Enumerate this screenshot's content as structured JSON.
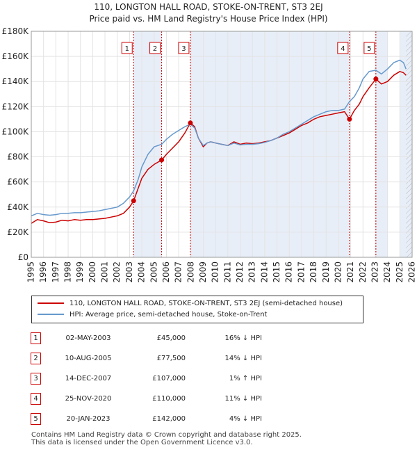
{
  "header": {
    "title_line1": "110, LONGTON HALL ROAD, STOKE-ON-TRENT, ST3 2EJ",
    "title_line2": "Price paid vs. HM Land Registry's House Price Index (HPI)"
  },
  "colors": {
    "property": "#cc0000",
    "hpi": "#6699cc",
    "shade": "#e8eef8",
    "vline": "#cc0000"
  },
  "chart_data": {
    "type": "line",
    "xlim": [
      1995,
      2026
    ],
    "ylim": [
      0,
      180000
    ],
    "x_ticks": [
      "1995",
      "1996",
      "1997",
      "1998",
      "1999",
      "2000",
      "2001",
      "2002",
      "2003",
      "2004",
      "2005",
      "2006",
      "2007",
      "2008",
      "2009",
      "2010",
      "2011",
      "2012",
      "2013",
      "2014",
      "2015",
      "2016",
      "2017",
      "2018",
      "2019",
      "2020",
      "2021",
      "2022",
      "2023",
      "2024",
      "2025",
      "2026"
    ],
    "y_ticks": [
      {
        "value": 0,
        "label": "£0"
      },
      {
        "value": 20000,
        "label": "£20K"
      },
      {
        "value": 40000,
        "label": "£40K"
      },
      {
        "value": 60000,
        "label": "£60K"
      },
      {
        "value": 80000,
        "label": "£80K"
      },
      {
        "value": 100000,
        "label": "£100K"
      },
      {
        "value": 120000,
        "label": "£120K"
      },
      {
        "value": 140000,
        "label": "£140K"
      },
      {
        "value": 160000,
        "label": "£160K"
      },
      {
        "value": 180000,
        "label": "£180K"
      }
    ],
    "shaded_ranges": [
      [
        2003.33,
        2005.61
      ],
      [
        2007.95,
        2020.9
      ],
      [
        2023.05,
        2024.0
      ],
      [
        2025.0,
        2026.0
      ]
    ],
    "series": [
      {
        "name": "110, LONGTON HALL ROAD, STOKE-ON-TRENT, ST3 2EJ (semi-detached house)",
        "key": "property",
        "x": [
          1995.0,
          1995.5,
          1996.0,
          1996.5,
          1997.0,
          1997.5,
          1998.0,
          1998.5,
          1999.0,
          1999.5,
          2000.0,
          2000.5,
          2001.0,
          2001.5,
          2002.0,
          2002.5,
          2003.0,
          2003.33,
          2003.7,
          2004.0,
          2004.5,
          2005.0,
          2005.61,
          2006.0,
          2006.5,
          2007.0,
          2007.5,
          2007.95,
          2008.3,
          2008.6,
          2009.0,
          2009.3,
          2009.6,
          2010.0,
          2010.5,
          2011.0,
          2011.5,
          2012.0,
          2012.5,
          2013.0,
          2013.5,
          2014.0,
          2014.5,
          2015.0,
          2015.5,
          2016.0,
          2016.5,
          2017.0,
          2017.5,
          2018.0,
          2018.5,
          2019.0,
          2019.5,
          2020.0,
          2020.5,
          2020.9,
          2021.3,
          2021.7,
          2022.0,
          2022.5,
          2023.05,
          2023.5,
          2024.0,
          2024.5,
          2025.0,
          2025.3,
          2025.5
        ],
        "values": [
          27000,
          30000,
          29000,
          27500,
          28000,
          29500,
          29000,
          30000,
          29500,
          30000,
          30000,
          30500,
          31000,
          32000,
          33000,
          35000,
          40000,
          45000,
          55000,
          63000,
          70000,
          74000,
          77500,
          82000,
          87000,
          92000,
          99000,
          107000,
          104000,
          95000,
          88000,
          91000,
          92000,
          91000,
          90000,
          89000,
          92000,
          90000,
          91000,
          90500,
          91000,
          92000,
          93000,
          95000,
          97000,
          99000,
          102000,
          105000,
          107000,
          110000,
          112000,
          113000,
          114000,
          115000,
          116000,
          110000,
          117000,
          122000,
          128000,
          135000,
          142000,
          138000,
          140000,
          145000,
          148000,
          147000,
          145000
        ]
      },
      {
        "name": "HPI: Average price, semi-detached house, Stoke-on-Trent",
        "key": "hpi",
        "x": [
          1995.0,
          1995.5,
          1996.0,
          1996.5,
          1997.0,
          1997.5,
          1998.0,
          1998.5,
          1999.0,
          1999.5,
          2000.0,
          2000.5,
          2001.0,
          2001.5,
          2002.0,
          2002.5,
          2003.0,
          2003.33,
          2003.7,
          2004.0,
          2004.5,
          2005.0,
          2005.61,
          2006.0,
          2006.5,
          2007.0,
          2007.5,
          2007.95,
          2008.3,
          2008.6,
          2009.0,
          2009.3,
          2009.6,
          2010.0,
          2010.5,
          2011.0,
          2011.5,
          2012.0,
          2012.5,
          2013.0,
          2013.5,
          2014.0,
          2014.5,
          2015.0,
          2015.5,
          2016.0,
          2016.5,
          2017.0,
          2017.5,
          2018.0,
          2018.5,
          2019.0,
          2019.5,
          2020.0,
          2020.5,
          2020.9,
          2021.3,
          2021.7,
          2022.0,
          2022.5,
          2023.05,
          2023.5,
          2024.0,
          2024.5,
          2025.0,
          2025.3,
          2025.5
        ],
        "values": [
          33000,
          35000,
          34000,
          33500,
          34000,
          35000,
          35000,
          35500,
          35500,
          36000,
          36500,
          37000,
          38000,
          39000,
          40000,
          43000,
          48000,
          53000,
          62000,
          72000,
          82000,
          88000,
          90000,
          94000,
          98000,
          101000,
          104000,
          106000,
          103000,
          95000,
          89000,
          91000,
          92000,
          91000,
          90000,
          89000,
          91000,
          89500,
          90000,
          90000,
          90500,
          91500,
          93000,
          95000,
          98000,
          100000,
          103000,
          106000,
          109000,
          112000,
          114000,
          116000,
          117000,
          117000,
          118000,
          124000,
          128000,
          135000,
          142000,
          148000,
          149000,
          146000,
          150000,
          155000,
          157000,
          155000,
          150000
        ]
      }
    ],
    "sales": [
      {
        "n": "1",
        "date": "02-MAY-2003",
        "x": 2003.33,
        "price": 45000,
        "price_label": "£45,000",
        "pct": "16% ↓ HPI"
      },
      {
        "n": "2",
        "date": "10-AUG-2005",
        "x": 2005.61,
        "price": 77500,
        "price_label": "£77,500",
        "pct": "14% ↓ HPI"
      },
      {
        "n": "3",
        "date": "14-DEC-2007",
        "x": 2007.95,
        "price": 107000,
        "price_label": "£107,000",
        "pct": "1% ↑ HPI"
      },
      {
        "n": "4",
        "date": "25-NOV-2020",
        "x": 2020.9,
        "price": 110000,
        "price_label": "£110,000",
        "pct": "11% ↓ HPI"
      },
      {
        "n": "5",
        "date": "20-JAN-2023",
        "x": 2023.05,
        "price": 142000,
        "price_label": "£142,000",
        "pct": "4% ↓ HPI"
      }
    ],
    "hatch_from": 2025.0
  },
  "legend": {
    "property_label": "110, LONGTON HALL ROAD, STOKE-ON-TRENT, ST3 2EJ (semi-detached house)",
    "hpi_label": "HPI: Average price, semi-detached house, Stoke-on-Trent"
  },
  "footer": {
    "line1": "Contains HM Land Registry data © Crown copyright and database right 2025.",
    "line2": "This data is licensed under the Open Government Licence v3.0."
  }
}
